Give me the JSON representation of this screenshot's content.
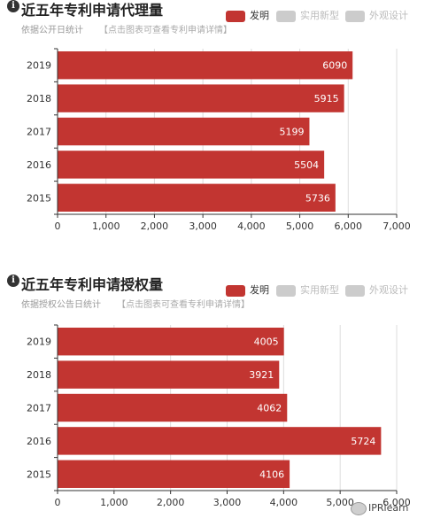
{
  "legend": {
    "items": [
      {
        "label": "发明",
        "color": "#c23531",
        "active": true
      },
      {
        "label": "实用新型",
        "color": "#cccccc",
        "active": false
      },
      {
        "label": "外观设计",
        "color": "#cccccc",
        "active": false
      }
    ],
    "active_text_color": "#333333",
    "inactive_text_color": "#bbbbbb"
  },
  "panels": [
    {
      "title": "近五年专利申请代理量",
      "subtitle": "依据公开日统计",
      "link_text": "【点击图表可查看专利申请详情】"
    },
    {
      "title": "近五年专利申请授权量",
      "subtitle": "依据授权公告日统计",
      "link_text": "【点击图表可查看专利申请详情】"
    }
  ],
  "chart_data": [
    {
      "type": "bar",
      "orientation": "horizontal",
      "title": "近五年专利申请代理量",
      "categories": [
        "2019",
        "2018",
        "2017",
        "2016",
        "2015"
      ],
      "series": [
        {
          "name": "发明",
          "values": [
            6090,
            5915,
            5199,
            5504,
            5736
          ]
        }
      ],
      "xlim": [
        0,
        7000
      ],
      "x_ticks": [
        0,
        1000,
        2000,
        3000,
        4000,
        5000,
        6000,
        7000
      ],
      "x_tick_labels": [
        "0",
        "1,000",
        "2,000",
        "3,000",
        "4,000",
        "5,000",
        "6,000",
        "7,000"
      ],
      "grid": true,
      "bar_color": "#c23531"
    },
    {
      "type": "bar",
      "orientation": "horizontal",
      "title": "近五年专利申请授权量",
      "categories": [
        "2019",
        "2018",
        "2017",
        "2016",
        "2015"
      ],
      "series": [
        {
          "name": "发明",
          "values": [
            4005,
            3921,
            4062,
            5724,
            4106
          ]
        }
      ],
      "xlim": [
        0,
        6000
      ],
      "x_ticks": [
        0,
        1000,
        2000,
        3000,
        4000,
        5000,
        6000
      ],
      "x_tick_labels": [
        "0",
        "1,000",
        "2,000",
        "3,000",
        "4,000",
        "5,000",
        "6,000"
      ],
      "grid": true,
      "bar_color": "#c23531"
    }
  ],
  "watermark": {
    "text": "IPRlearn"
  }
}
